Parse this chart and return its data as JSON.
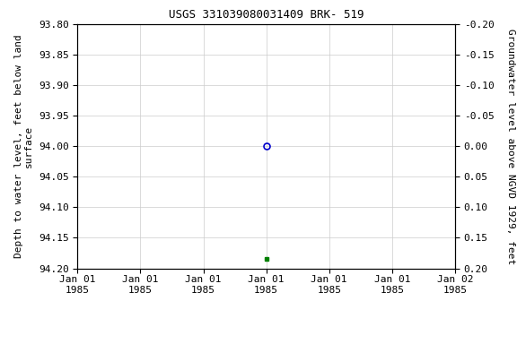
{
  "title": "USGS 331039080031409 BRK- 519",
  "ylabel_left": "Depth to water level, feet below land\nsurface",
  "ylabel_right": "Groundwater level above NGVD 1929, feet",
  "ylim_left_bottom": 94.2,
  "ylim_left_top": 93.8,
  "ylim_right_top": 0.2,
  "ylim_right_bottom": -0.2,
  "yticks_left": [
    93.8,
    93.85,
    93.9,
    93.95,
    94.0,
    94.05,
    94.1,
    94.15,
    94.2
  ],
  "yticks_right": [
    0.2,
    0.15,
    0.1,
    0.05,
    0.0,
    -0.05,
    -0.1,
    -0.15,
    -0.2
  ],
  "blue_point_x": 3,
  "blue_point_y": 94.0,
  "green_point_x": 3,
  "green_point_y": 94.185,
  "xlim": [
    0,
    6
  ],
  "xtick_positions": [
    0,
    1,
    2,
    3,
    4,
    5,
    6
  ],
  "xtick_labels": [
    "Jan 01\n1985",
    "Jan 01\n1985",
    "Jan 01\n1985",
    "Jan 01\n1985",
    "Jan 01\n1985",
    "Jan 01\n1985",
    "Jan 02\n1985"
  ],
  "background_color": "#ffffff",
  "grid_color": "#cccccc",
  "legend_color": "#008000",
  "blue_marker_color": "#0000cc",
  "font_family": "monospace",
  "title_fontsize": 9,
  "tick_fontsize": 8,
  "label_fontsize": 8
}
